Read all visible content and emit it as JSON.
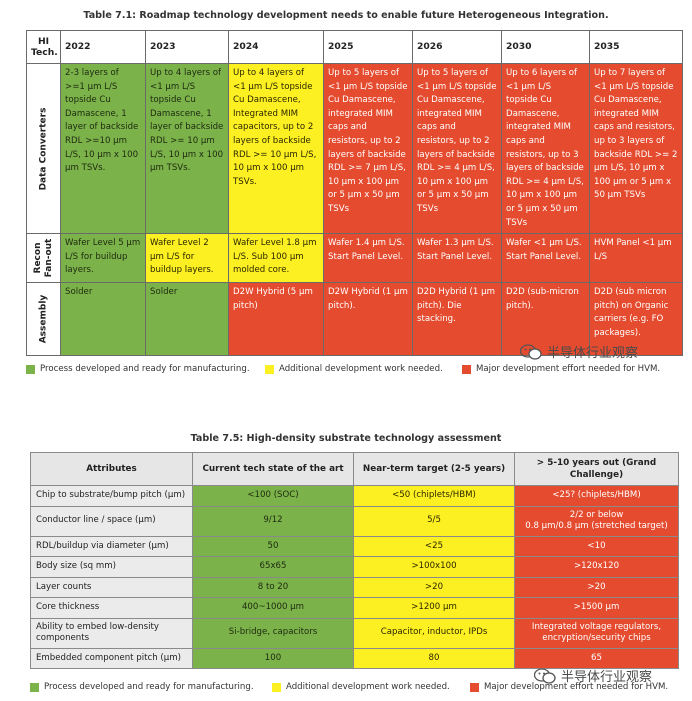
{
  "table1": {
    "caption": "Table 7.1: Roadmap technology development needs to enable future Heterogeneous Integration.",
    "corner": "HI Tech.",
    "years": [
      "2022",
      "2023",
      "2024",
      "2025",
      "2026",
      "2030",
      "2035"
    ],
    "rows": [
      {
        "label": "Data Converters",
        "cells": [
          {
            "text": "2-3 layers of >=1 μm L/S topside Cu Damascene, 1 layer of backside RDL >=10 μm L/S, 10 μm x 100 μm TSVs.",
            "status": "green"
          },
          {
            "text": "Up to 4 layers of <1 μm L/S topside Cu Damascene, 1 layer of backside RDL >= 10 μm L/S, 10 μm x 100 μm TSVs.",
            "status": "green"
          },
          {
            "text": "Up to 4 layers of <1 μm L/S topside Cu Damascene, Integrated MIM capacitors, up to 2 layers of backside RDL >= 10 μm L/S, 10 μm x 100 μm TSVs.",
            "status": "yellow"
          },
          {
            "text": "Up to 5 layers of <1 μm L/S topside Cu Damascene, integrated MIM caps and resistors, up to 2 layers of backside RDL >= 7 μm L/S, 10 μm x 100 μm or 5 μm x 50 μm TSVs",
            "status": "red"
          },
          {
            "text": "Up to 5 layers of <1 μm L/S topside Cu Damascene, integrated MIM caps and resistors, up to 2 layers of backside RDL >= 4 μm L/S, 10 μm x 100 μm or 5 μm x 50 μm TSVs",
            "status": "red"
          },
          {
            "text": "Up to 6 layers of <1 μm L/S topside Cu Damascene, integrated MIM caps and resistors, up to 3 layers of backside RDL >= 4 μm L/S, 10 μm x 100 μm or 5 μm x 50 μm TSVs",
            "status": "red"
          },
          {
            "text": "Up to 7 layers of <1 μm L/S topside Cu Damascene, integrated MIM caps and resistors, up to 3 layers of backside RDL >= 2 μm L/S, 10 μm x 100 μm or 5 μm x 50 μm TSVs",
            "status": "red"
          }
        ]
      },
      {
        "label": "Recon Fan-out",
        "cells": [
          {
            "text": "Wafer Level 5 μm L/S for buildup layers.",
            "status": "green"
          },
          {
            "text": "Wafer Level 2 μm L/S for buildup layers.",
            "status": "yellow"
          },
          {
            "text": "Wafer Level 1.8 μm L/S. Sub 100 μm molded core.",
            "status": "yellow"
          },
          {
            "text": "Wafer 1.4 μm L/S. Start Panel Level.",
            "status": "red"
          },
          {
            "text": "Wafer 1.3 μm L/S. Start Panel Level.",
            "status": "red"
          },
          {
            "text": "Wafer <1 μm L/S. Start Panel Level.",
            "status": "red"
          },
          {
            "text": "HVM Panel <1 μm L/S",
            "status": "red"
          }
        ]
      },
      {
        "label": "Assembly",
        "cells": [
          {
            "text": "Solder",
            "status": "green"
          },
          {
            "text": "Solder",
            "status": "green"
          },
          {
            "text": "D2W Hybrid (5 μm pitch)",
            "status": "red"
          },
          {
            "text": "D2W Hybrid (1 μm pitch).",
            "status": "red"
          },
          {
            "text": "D2D Hybrid (1 μm pitch). Die stacking.",
            "status": "red"
          },
          {
            "text": "D2D (sub-micron pitch).",
            "status": "red"
          },
          {
            "text": "D2D (sub micron pitch) on Organic carriers (e.g. FO packages).",
            "status": "red"
          }
        ]
      }
    ]
  },
  "table2": {
    "caption": "Table 7.5: High-density substrate technology assessment",
    "headers": [
      "Attributes",
      "Current tech state of the art",
      "Near-term target (2-5 years)",
      "> 5-10 years out (Grand Challenge)"
    ],
    "rows": [
      {
        "attr": "Chip to substrate/bump pitch (μm)",
        "current": "<100 (SOC)",
        "near": "<50 (chiplets/HBM)",
        "grand": "<25? (chiplets/HBM)"
      },
      {
        "attr": "Conductor line / space (μm)",
        "current": "9/12",
        "near": "5/5",
        "grand": "2/2 or below\n0.8 μm/0.8 μm (stretched target)"
      },
      {
        "attr": "RDL/buildup via diameter (μm)",
        "current": "50",
        "near": "<25",
        "grand": "<10"
      },
      {
        "attr": "Body size (sq mm)",
        "current": "65x65",
        "near": ">100x100",
        "grand": ">120x120"
      },
      {
        "attr": "Layer counts",
        "current": "8 to 20",
        "near": ">20",
        "grand": ">20"
      },
      {
        "attr": "Core thickness",
        "current": "400~1000 μm",
        "near": ">1200 μm",
        "grand": ">1500 μm"
      },
      {
        "attr": "Ability to embed low-density components",
        "current": "Si-bridge, capacitors",
        "near": "Capacitor, inductor, IPDs",
        "grand": "Integrated voltage regulators, encryption/security chips"
      },
      {
        "attr": "Embedded component pitch (μm)",
        "current": "100",
        "near": "80",
        "grand": "65"
      }
    ]
  },
  "legend": {
    "green": "Process developed and ready for manufacturing.",
    "yellow": "Additional development work needed.",
    "red": "Major development effort needed for HVM."
  },
  "colors": {
    "green": "#7bb24a",
    "yellow": "#fdf022",
    "red": "#e44b2f"
  },
  "watermark": "半导体行业观察"
}
